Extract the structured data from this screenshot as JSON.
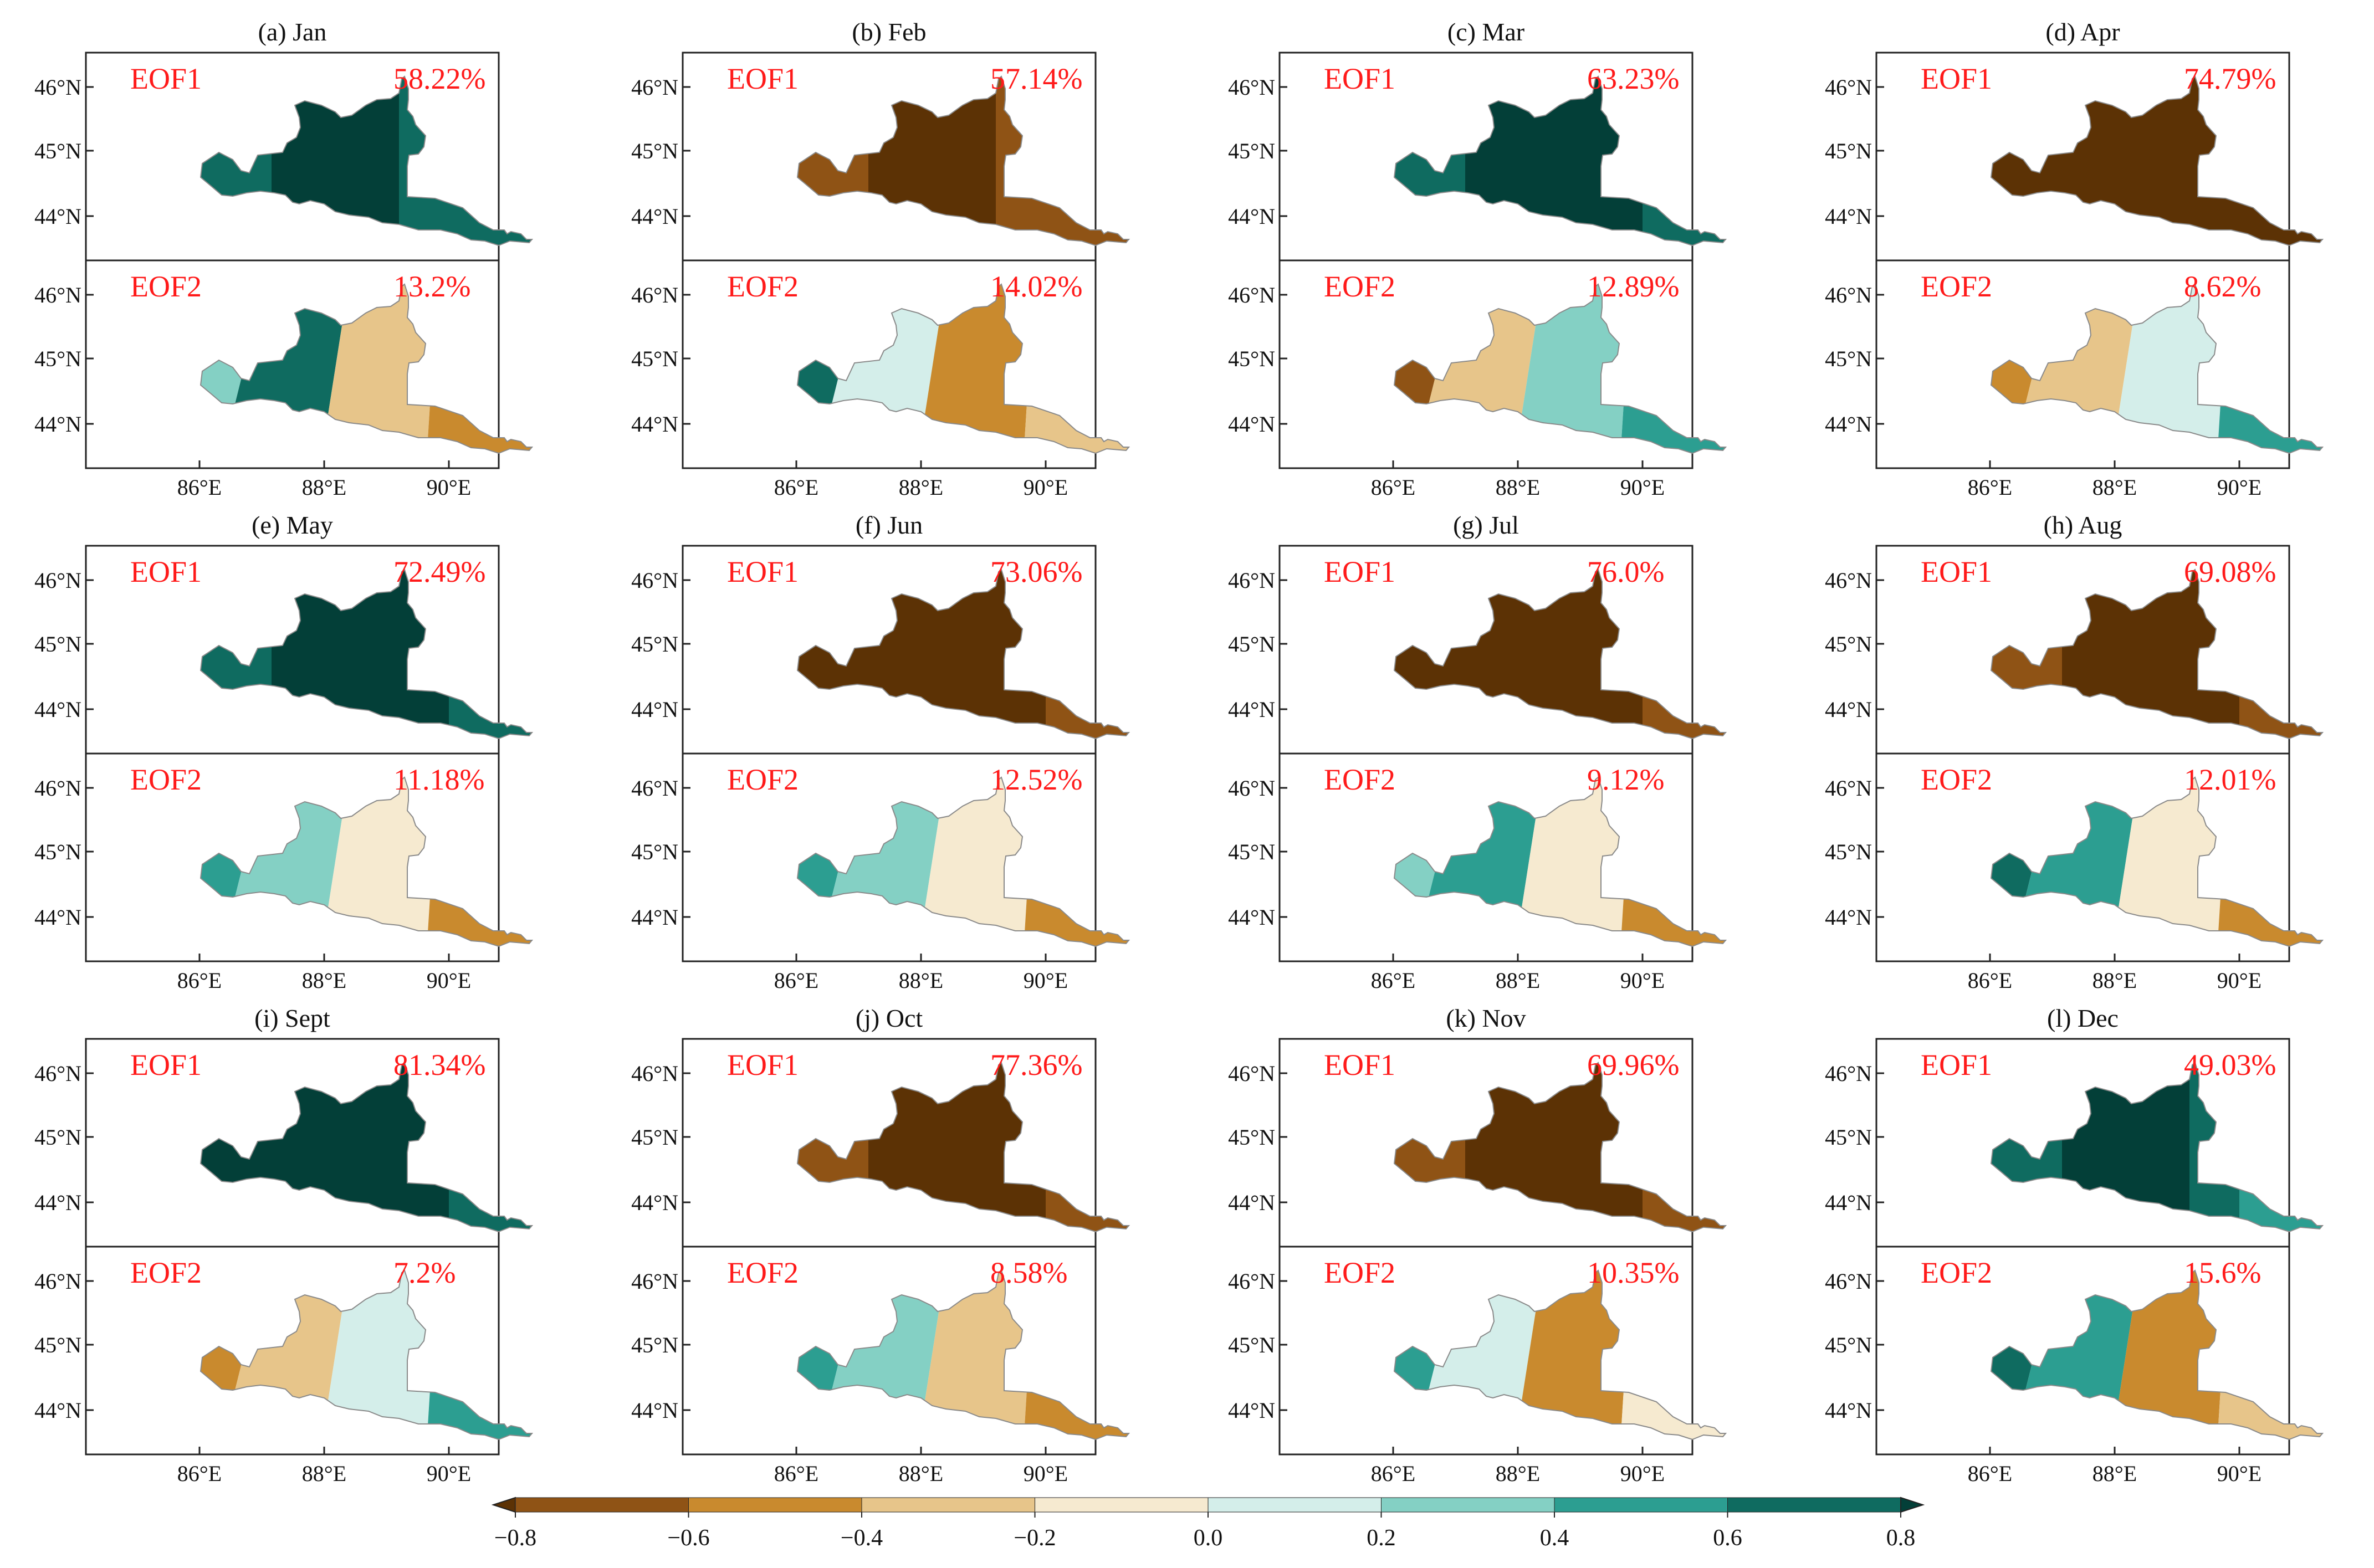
{
  "figure": {
    "description_type": "EOF spatial patterns, 12 monthly panels",
    "cbar_ticks": [
      "−0.8",
      "−0.6",
      "−0.4",
      "−0.2",
      "0.0",
      "0.2",
      "0.4",
      "0.6",
      "0.8"
    ]
  },
  "chart_data": {
    "type": "heatmap",
    "title": "",
    "colorbar": {
      "levels": [
        -0.8,
        -0.6,
        -0.4,
        -0.2,
        0.0,
        0.2,
        0.4,
        0.6,
        0.8
      ],
      "tick_labels": [
        "−0.8",
        "−0.6",
        "−0.4",
        "−0.2",
        "0.0",
        "0.2",
        "0.4",
        "0.6",
        "0.8"
      ],
      "colors": [
        "#5c3205",
        "#8f5315",
        "#c98a2e",
        "#e7c58a",
        "#f6ead0",
        "#d4eeea",
        "#84d0c4",
        "#2c9e91",
        "#0f6b60",
        "#033f38"
      ]
    },
    "lat_ticks": [
      "44°N",
      "45°N",
      "46°N"
    ],
    "lon_ticks": [
      "86°E",
      "88°E",
      "90°E"
    ],
    "mode_labels": [
      "EOF1",
      "EOF2"
    ],
    "panels": [
      {
        "label": "(a) Jan",
        "eof1_variance": "58.22%",
        "eof2_variance": "13.2%",
        "eof1_colors": [
          "#0f6b60",
          "#033f38",
          "#0f6b60",
          "#0f6b60"
        ],
        "eof2_colors": [
          "#84d0c4",
          "#0f6b60",
          "#e7c58a",
          "#c98a2e"
        ]
      },
      {
        "label": "(b) Feb",
        "eof1_variance": "57.14%",
        "eof2_variance": "14.02%",
        "eof1_colors": [
          "#8f5315",
          "#5c3205",
          "#8f5315",
          "#8f5315"
        ],
        "eof2_colors": [
          "#0f6b60",
          "#d4eeea",
          "#c98a2e",
          "#e7c58a"
        ]
      },
      {
        "label": "(c) Mar",
        "eof1_variance": "63.23%",
        "eof2_variance": "12.89%",
        "eof1_colors": [
          "#0f6b60",
          "#033f38",
          "#033f38",
          "#0f6b60"
        ],
        "eof2_colors": [
          "#8f5315",
          "#e7c58a",
          "#84d0c4",
          "#2c9e91"
        ]
      },
      {
        "label": "(d) Apr",
        "eof1_variance": "74.79%",
        "eof2_variance": "8.62%",
        "eof1_colors": [
          "#5c3205",
          "#5c3205",
          "#5c3205",
          "#5c3205"
        ],
        "eof2_colors": [
          "#c98a2e",
          "#e7c58a",
          "#d4eeea",
          "#2c9e91"
        ]
      },
      {
        "label": "(e) May",
        "eof1_variance": "72.49%",
        "eof2_variance": "11.18%",
        "eof1_colors": [
          "#0f6b60",
          "#033f38",
          "#033f38",
          "#0f6b60"
        ],
        "eof2_colors": [
          "#2c9e91",
          "#84d0c4",
          "#f6ead0",
          "#c98a2e"
        ]
      },
      {
        "label": "(f) Jun",
        "eof1_variance": "73.06%",
        "eof2_variance": "12.52%",
        "eof1_colors": [
          "#5c3205",
          "#5c3205",
          "#5c3205",
          "#8f5315"
        ],
        "eof2_colors": [
          "#2c9e91",
          "#84d0c4",
          "#f6ead0",
          "#c98a2e"
        ]
      },
      {
        "label": "(g) Jul",
        "eof1_variance": "76.0%",
        "eof2_variance": "9.12%",
        "eof1_colors": [
          "#5c3205",
          "#5c3205",
          "#5c3205",
          "#8f5315"
        ],
        "eof2_colors": [
          "#84d0c4",
          "#2c9e91",
          "#f6ead0",
          "#c98a2e"
        ]
      },
      {
        "label": "(h) Aug",
        "eof1_variance": "69.08%",
        "eof2_variance": "12.01%",
        "eof1_colors": [
          "#8f5315",
          "#5c3205",
          "#5c3205",
          "#8f5315"
        ],
        "eof2_colors": [
          "#0f6b60",
          "#2c9e91",
          "#f6ead0",
          "#c98a2e"
        ]
      },
      {
        "label": "(i) Sept",
        "eof1_variance": "81.34%",
        "eof2_variance": "7.2%",
        "eof1_colors": [
          "#033f38",
          "#033f38",
          "#033f38",
          "#0f6b60"
        ],
        "eof2_colors": [
          "#c98a2e",
          "#e7c58a",
          "#d4eeea",
          "#2c9e91"
        ]
      },
      {
        "label": "(j) Oct",
        "eof1_variance": "77.36%",
        "eof2_variance": "8.58%",
        "eof1_colors": [
          "#8f5315",
          "#5c3205",
          "#5c3205",
          "#8f5315"
        ],
        "eof2_colors": [
          "#2c9e91",
          "#84d0c4",
          "#e7c58a",
          "#c98a2e"
        ]
      },
      {
        "label": "(k) Nov",
        "eof1_variance": "69.96%",
        "eof2_variance": "10.35%",
        "eof1_colors": [
          "#8f5315",
          "#5c3205",
          "#5c3205",
          "#8f5315"
        ],
        "eof2_colors": [
          "#2c9e91",
          "#d4eeea",
          "#c98a2e",
          "#f6ead0"
        ]
      },
      {
        "label": "(l) Dec",
        "eof1_variance": "49.03%",
        "eof2_variance": "15.6%",
        "eof1_colors": [
          "#0f6b60",
          "#033f38",
          "#0f6b60",
          "#2c9e91"
        ],
        "eof2_colors": [
          "#0f6b60",
          "#2c9e91",
          "#c98a2e",
          "#e7c58a"
        ]
      }
    ]
  }
}
